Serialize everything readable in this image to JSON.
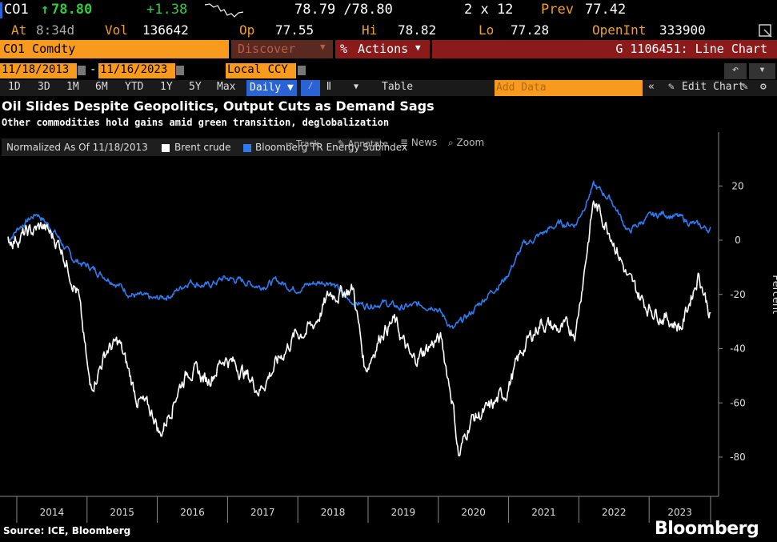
{
  "quote": {
    "ticker": "CO1",
    "last": "78.80",
    "change": "+1.38",
    "bid_ask": "78.79 /78.80",
    "size": "2 x 12",
    "prev_label": "Prev",
    "prev": "77.42",
    "at_label": "At",
    "time": "8:34d",
    "vol_label": "Vol",
    "vol": "136642",
    "open_label": "Op",
    "open": "77.55",
    "hi_label": "Hi",
    "hi": "78.82",
    "lo_label": "Lo",
    "lo": "77.28",
    "oi_label": "OpenInt",
    "oi": "333900"
  },
  "command": {
    "security": "CO1 Comdty",
    "discover": "Discover",
    "actions": "Actions",
    "function": "G 1106451: Line Chart"
  },
  "range": {
    "start": "11/18/2013",
    "end": "11/16/2023",
    "currency": "Local CCY"
  },
  "toolbar": {
    "periods": [
      "1D",
      "3D",
      "1M",
      "6M",
      "YTD",
      "1Y",
      "5Y",
      "Max"
    ],
    "frequency": "Daily",
    "table": "Table",
    "add_data": "Add Data",
    "edit_chart": "Edit Chart"
  },
  "chart_text": {
    "title": "Oil Slides Despite Geopolitics, Output Cuts as Demand Sags",
    "subtitle": "Other commodities hold gains amid green transition, deglobalization",
    "normalized": "Normalized As Of 11/18/2013",
    "track": "Track",
    "annotate": "Annotate",
    "news": "News",
    "zoom": "Zoom",
    "source": "Source: ICE, Bloomberg",
    "brand": "Bloomberg"
  },
  "colors": {
    "brent": "#ffffff",
    "bcom": "#2e7bf0",
    "accent": "#f79a1e",
    "up": "#2ecc40",
    "header_bar": "#8b1a1a"
  },
  "chart_data": {
    "type": "line",
    "ylabel": "Percent",
    "ylim": [
      -92,
      40
    ],
    "yticks": [
      20,
      0,
      -20,
      -40,
      -60,
      -80
    ],
    "x_labels": [
      "2014",
      "2015",
      "2016",
      "2017",
      "2018",
      "2019",
      "2020",
      "2021",
      "2022",
      "2023"
    ],
    "series": [
      {
        "name": "Brent crude",
        "x": [
          "2013-11",
          "2014-02",
          "2014-05",
          "2014-08",
          "2014-11",
          "2015-01",
          "2015-04",
          "2015-06",
          "2015-09",
          "2015-12",
          "2016-01",
          "2016-04",
          "2016-06",
          "2016-09",
          "2016-12",
          "2017-03",
          "2017-06",
          "2017-09",
          "2017-12",
          "2018-03",
          "2018-06",
          "2018-10",
          "2018-12",
          "2019-03",
          "2019-05",
          "2019-08",
          "2019-12",
          "2020-01",
          "2020-03",
          "2020-04",
          "2020-06",
          "2020-09",
          "2020-12",
          "2021-03",
          "2021-06",
          "2021-09",
          "2021-12",
          "2022-03",
          "2022-06",
          "2022-09",
          "2022-12",
          "2023-03",
          "2023-06",
          "2023-09",
          "2023-11"
        ],
        "values": [
          0,
          2,
          5,
          -2,
          -20,
          -55,
          -40,
          -38,
          -58,
          -65,
          -72,
          -55,
          -47,
          -52,
          -43,
          -48,
          -55,
          -45,
          -35,
          -32,
          -20,
          -18,
          -48,
          -33,
          -30,
          -45,
          -37,
          -37,
          -60,
          -80,
          -66,
          -63,
          -56,
          -40,
          -30,
          -33,
          -33,
          14,
          3,
          -15,
          -24,
          -28,
          -32,
          -12,
          -28
        ]
      },
      {
        "name": "Bloomberg TR Energy Subindex",
        "x": [
          "2013-11",
          "2014-01",
          "2014-04",
          "2014-07",
          "2014-10",
          "2015-01",
          "2015-05",
          "2015-08",
          "2015-12",
          "2016-03",
          "2016-06",
          "2016-09",
          "2016-12",
          "2017-03",
          "2017-06",
          "2017-09",
          "2017-12",
          "2018-03",
          "2018-06",
          "2018-09",
          "2018-12",
          "2019-03",
          "2019-06",
          "2019-09",
          "2019-12",
          "2020-03",
          "2020-06",
          "2020-09",
          "2020-12",
          "2021-03",
          "2021-06",
          "2021-09",
          "2021-12",
          "2022-03",
          "2022-06",
          "2022-09",
          "2022-12",
          "2023-03",
          "2023-06",
          "2023-09",
          "2023-11"
        ],
        "values": [
          0,
          5,
          10,
          3,
          -7,
          -10,
          -15,
          -20,
          -22,
          -20,
          -15,
          -17,
          -14,
          -15,
          -17,
          -15,
          -18,
          -16,
          -15,
          -22,
          -24,
          -23,
          -25,
          -24,
          -24,
          -33,
          -27,
          -20,
          -14,
          -2,
          2,
          6,
          6,
          20,
          15,
          3,
          8,
          10,
          8,
          5,
          4
        ]
      }
    ]
  }
}
